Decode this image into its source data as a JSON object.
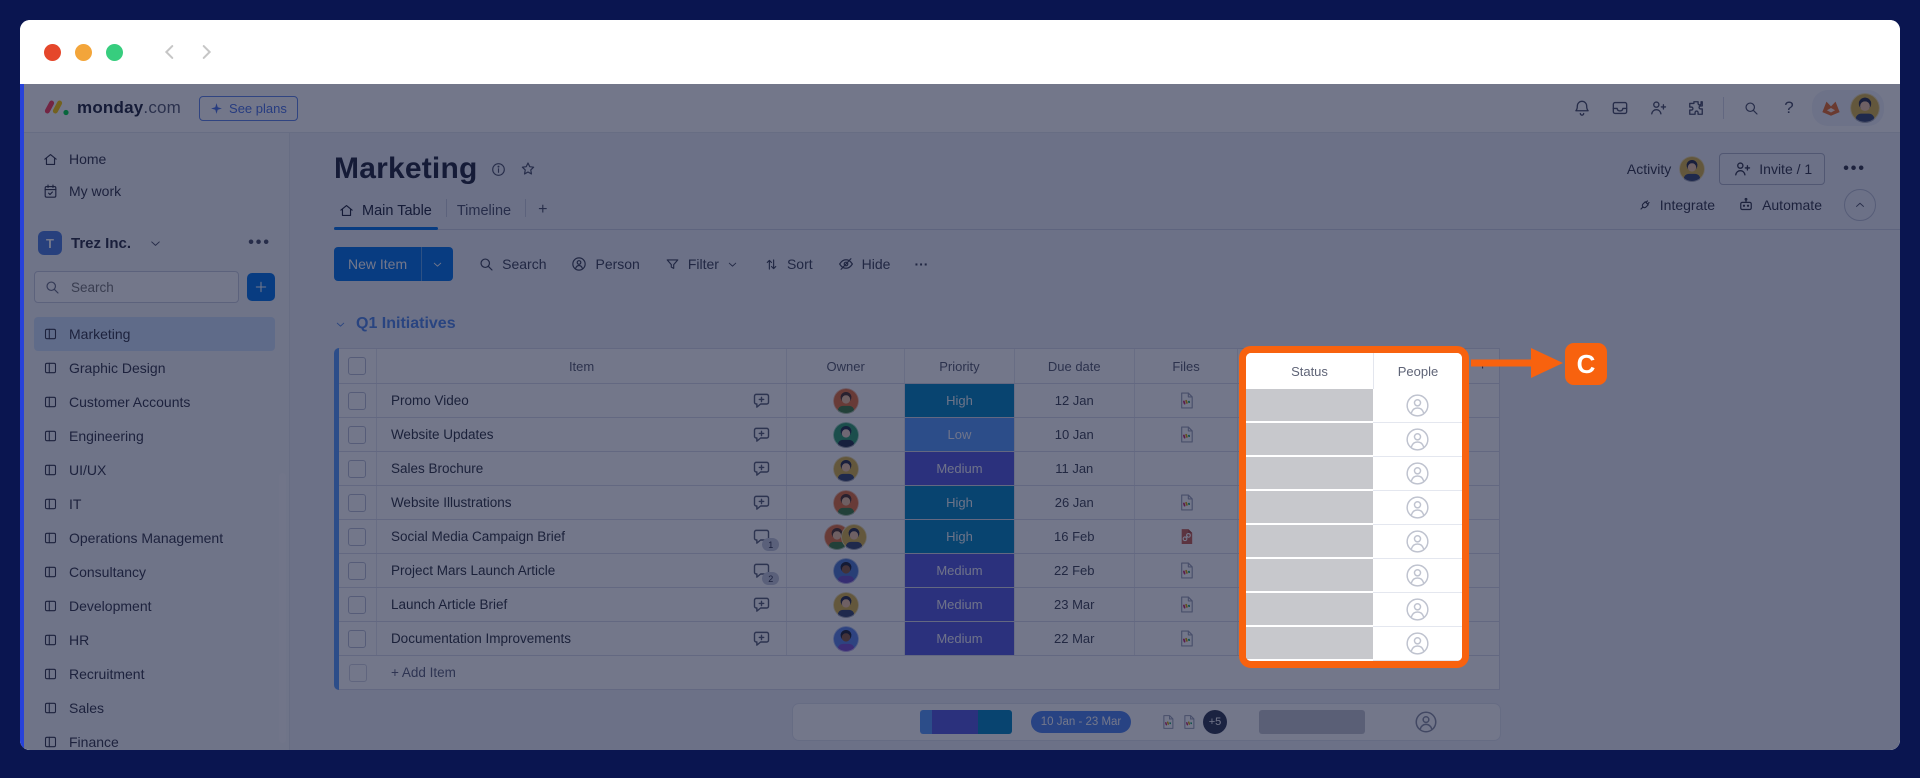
{
  "window": {
    "traffic_lights": {
      "close": "#e5472b",
      "minimize": "#f3a53a",
      "zoom": "#37cd7e"
    }
  },
  "app_header": {
    "logo_bold": "monday",
    "logo_light": ".com",
    "see_plans_label": "See plans",
    "icons": [
      "bell-icon",
      "inbox-icon",
      "invite-members-icon",
      "apps-icon",
      "search-icon",
      "help-icon",
      "whats-new-icon"
    ]
  },
  "sidebar": {
    "home_label": "Home",
    "my_work_label": "My work",
    "workspace": {
      "initial": "T",
      "name": "Trez Inc."
    },
    "search_placeholder": "Search",
    "boards": [
      "Marketing",
      "Graphic Design",
      "Customer Accounts",
      "Engineering",
      "UI/UX",
      "IT",
      "Operations Management",
      "Consultancy",
      "Development",
      "HR",
      "Recruitment",
      "Sales",
      "Finance"
    ],
    "selected_board": "Marketing"
  },
  "board": {
    "title": "Marketing",
    "activity_label": "Activity",
    "invite_label": "Invite / 1",
    "tabs": [
      {
        "label": "Main Table",
        "active": true
      },
      {
        "label": "Timeline",
        "active": false
      }
    ],
    "add_tab_label": "+",
    "integrate_label": "Integrate",
    "automate_label": "Automate",
    "toolbar": {
      "new_item_label": "New Item",
      "search_label": "Search",
      "person_label": "Person",
      "filter_label": "Filter",
      "sort_label": "Sort",
      "hide_label": "Hide",
      "more_label": "···"
    }
  },
  "table": {
    "group": {
      "title": "Q1 Initiatives",
      "color": "#579bfc"
    },
    "columns": [
      "Item",
      "Owner",
      "Priority",
      "Due date",
      "Files",
      "Status",
      "People"
    ],
    "add_column_label": "+",
    "rows": [
      {
        "item": "Promo Video",
        "chat": "add",
        "owners": [
          "man-orange"
        ],
        "priority": "High",
        "due": "12 Jan",
        "file": "doc"
      },
      {
        "item": "Website Updates",
        "chat": "add",
        "owners": [
          "person-green"
        ],
        "priority": "Low",
        "due": "10 Jan",
        "file": "doc"
      },
      {
        "item": "Sales Brochure",
        "chat": "add",
        "owners": [
          "woman-yellow"
        ],
        "priority": "Medium",
        "due": "11 Jan",
        "file": "none"
      },
      {
        "item": "Website Illustrations",
        "chat": "add",
        "owners": [
          "man-orange"
        ],
        "priority": "High",
        "due": "26 Jan",
        "file": "doc"
      },
      {
        "item": "Social Media Campaign Brief",
        "chat": "1",
        "owners": [
          "man-orange",
          "woman-yellow"
        ],
        "priority": "High",
        "due": "16 Feb",
        "file": "link"
      },
      {
        "item": "Project Mars Launch Article",
        "chat": "2",
        "owners": [
          "man-navy"
        ],
        "priority": "Medium",
        "due": "22 Feb",
        "file": "doc"
      },
      {
        "item": "Launch Article Brief",
        "chat": "add",
        "owners": [
          "woman-yellow"
        ],
        "priority": "Medium",
        "due": "23 Mar",
        "file": "doc"
      },
      {
        "item": "Documentation Improvements",
        "chat": "add",
        "owners": [
          "man-blue"
        ],
        "priority": "Medium",
        "due": "22 Mar",
        "file": "doc"
      }
    ],
    "add_item_label": "+ Add Item",
    "summary": {
      "priority_segments": [
        {
          "priority": "Low",
          "color": "#579bfc",
          "flex": 1
        },
        {
          "priority": "Medium",
          "color": "#5559df",
          "flex": 4
        },
        {
          "priority": "High",
          "color": "#0086c0",
          "flex": 3
        }
      ],
      "date_range": "10 Jan - 23 Mar",
      "files_more": "+5"
    }
  },
  "priority_colors": {
    "High": "#0086c0",
    "Medium": "#5559df",
    "Low": "#579bfc"
  },
  "avatars": {
    "man-orange": {
      "bg": "#e4703a",
      "skin": "#f2c7a0",
      "hair": "#4c3228",
      "shirt": "#3e7d3f"
    },
    "person-green": {
      "bg": "#2f9d6d",
      "skin": "#f2d9c8",
      "hair": "#223048",
      "shirt": "#223048"
    },
    "woman-yellow": {
      "bg": "#d8b345",
      "skin": "#f2c9a4",
      "hair": "#2a2f45",
      "shirt": "#37456b"
    },
    "man-navy": {
      "bg": "#4e79cf",
      "skin": "#8a5c3e",
      "hair": "#1d2233",
      "shirt": "#6d4fc4"
    },
    "man-blue": {
      "bg": "#5c84e8",
      "skin": "#8a5c3e",
      "hair": "#1d2233",
      "shirt": "#7a4fd0"
    }
  },
  "spotlight": {
    "columns": [
      "Status",
      "People"
    ],
    "label": "C",
    "accent": "#f8620e",
    "status_fill": "#c7c8cc"
  }
}
